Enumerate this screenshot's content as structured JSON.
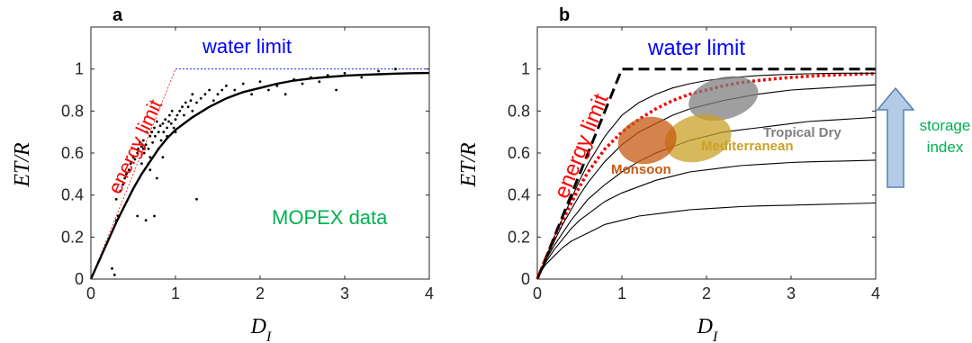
{
  "panel_a": {
    "letter": "a",
    "ylabel_base": "ET/R",
    "xlabel_base": "D",
    "xlabel_sub": "I",
    "annotations": {
      "water_limit": "water limit",
      "energy_limit": "energy limit",
      "dataset": "MOPEX data"
    }
  },
  "panel_b": {
    "letter": "b",
    "ylabel_base": "ET/R",
    "xlabel_base": "D",
    "xlabel_sub": "I",
    "annotations": {
      "water_limit": "water limit",
      "energy_limit": "energy limit",
      "tropical_dry": "Tropical Dry",
      "mediterranean": "Mediterranean",
      "monsoon": "Monsoon",
      "storage_index_line1": "storage",
      "storage_index_line2": "index"
    }
  },
  "colors": {
    "water_limit": "#0000ff",
    "energy_limit": "#ff0000",
    "dataset_text": "#00b050",
    "storage_text": "#00b050",
    "red_dotted": "#ee0000",
    "tropical_dry": "#7f7f7f",
    "mediterranean": "#c9a227",
    "monsoon": "#c55a11",
    "arrow_fill": "#b4cbe6",
    "arrow_stroke": "#5b7fb3"
  },
  "chart_data": [
    {
      "type": "scatter",
      "panel": "a",
      "xlabel": "D_I",
      "ylabel": "ET/R",
      "xlim": [
        0,
        4
      ],
      "ylim": [
        0,
        1.2
      ],
      "xticks": [
        "0",
        "1",
        "2",
        "3",
        "4"
      ],
      "yticks": [
        "0",
        "0.2",
        "0.4",
        "0.6",
        "0.8",
        "1"
      ],
      "grid": false,
      "series": [
        {
          "style": "dashed",
          "color": "#ff0000",
          "x": [
            0,
            1
          ],
          "y": [
            0,
            1
          ]
        },
        {
          "style": "dashed",
          "color": "#0000ff",
          "x": [
            1,
            4
          ],
          "y": [
            1,
            1
          ]
        },
        {
          "style": "line",
          "color": "#000000",
          "x": [
            0,
            0.1,
            0.2,
            0.3,
            0.4,
            0.5,
            0.6,
            0.7,
            0.8,
            0.9,
            1.0,
            1.2,
            1.4,
            1.6,
            1.8,
            2.0,
            2.2,
            2.4,
            2.6,
            2.8,
            3.0,
            3.2,
            3.4,
            3.6,
            3.8,
            4.0
          ],
          "y": [
            0,
            0.09,
            0.18,
            0.27,
            0.35,
            0.43,
            0.5,
            0.56,
            0.62,
            0.67,
            0.71,
            0.77,
            0.82,
            0.86,
            0.89,
            0.91,
            0.93,
            0.945,
            0.955,
            0.962,
            0.968,
            0.972,
            0.975,
            0.978,
            0.98,
            0.981
          ]
        },
        {
          "style": "points",
          "color": "#000000",
          "x": [
            0.25,
            0.28,
            0.3,
            0.32,
            0.35,
            0.38,
            0.4,
            0.42,
            0.45,
            0.47,
            0.5,
            0.52,
            0.55,
            0.56,
            0.58,
            0.6,
            0.6,
            0.62,
            0.63,
            0.65,
            0.66,
            0.68,
            0.7,
            0.7,
            0.72,
            0.73,
            0.75,
            0.76,
            0.78,
            0.8,
            0.8,
            0.82,
            0.83,
            0.85,
            0.86,
            0.88,
            0.9,
            0.9,
            0.92,
            0.93,
            0.95,
            0.96,
            0.98,
            1.0,
            1.0,
            1.02,
            1.05,
            1.08,
            1.1,
            1.12,
            1.15,
            1.18,
            1.2,
            1.2,
            1.25,
            1.3,
            1.35,
            1.4,
            1.45,
            1.5,
            1.55,
            1.6,
            1.7,
            1.8,
            1.9,
            2.0,
            2.1,
            2.2,
            2.3,
            2.4,
            2.5,
            2.6,
            2.7,
            2.8,
            2.9,
            3.0,
            3.2,
            3.4,
            3.6,
            0.28,
            0.3,
            0.55,
            0.65,
            0.78,
            0.7,
            0.85,
            1.25,
            0.75,
            0.62,
            0.68
          ],
          "y": [
            0.05,
            0.02,
            0.28,
            0.3,
            0.42,
            0.45,
            0.48,
            0.5,
            0.52,
            0.55,
            0.58,
            0.57,
            0.6,
            0.62,
            0.65,
            0.63,
            0.55,
            0.66,
            0.6,
            0.64,
            0.7,
            0.62,
            0.68,
            0.58,
            0.7,
            0.65,
            0.72,
            0.68,
            0.75,
            0.7,
            0.62,
            0.73,
            0.66,
            0.74,
            0.7,
            0.76,
            0.72,
            0.68,
            0.75,
            0.78,
            0.74,
            0.8,
            0.72,
            0.76,
            0.7,
            0.78,
            0.8,
            0.82,
            0.78,
            0.84,
            0.82,
            0.85,
            0.8,
            0.88,
            0.84,
            0.86,
            0.88,
            0.9,
            0.85,
            0.88,
            0.9,
            0.92,
            0.9,
            0.93,
            0.88,
            0.94,
            0.9,
            0.92,
            0.88,
            0.95,
            0.93,
            0.96,
            0.94,
            0.97,
            0.9,
            0.98,
            0.96,
            0.99,
            1.0,
            0.45,
            0.38,
            0.3,
            0.28,
            0.48,
            0.52,
            0.58,
            0.38,
            0.3,
            0.62,
            0.55
          ]
        }
      ]
    },
    {
      "type": "line",
      "panel": "b",
      "xlabel": "D_I",
      "ylabel": "ET/R",
      "xlim": [
        0,
        4
      ],
      "ylim": [
        0,
        1.2
      ],
      "xticks": [
        "0",
        "1",
        "2",
        "3",
        "4"
      ],
      "yticks": [
        "0",
        "0.2",
        "0.4",
        "0.6",
        "0.8",
        "1"
      ],
      "grid": false,
      "x": [
        0,
        0.05,
        0.1,
        0.2,
        0.3,
        0.4,
        0.5,
        0.6,
        0.8,
        1.0,
        1.2,
        1.4,
        1.6,
        1.8,
        2.0,
        2.2,
        2.4,
        2.6,
        2.8,
        3.0,
        3.2,
        3.4,
        3.6,
        3.8,
        4.0
      ],
      "series": [
        {
          "style": "dashed-thick",
          "color": "#000000",
          "x": [
            0,
            1,
            4
          ],
          "y": [
            0,
            1,
            1
          ]
        },
        {
          "style": "dotted",
          "color": "#ee0000",
          "y": [
            0,
            0.05,
            0.1,
            0.19,
            0.28,
            0.36,
            0.44,
            0.51,
            0.62,
            0.7,
            0.76,
            0.81,
            0.85,
            0.88,
            0.9,
            0.92,
            0.935,
            0.945,
            0.953,
            0.96,
            0.965,
            0.97,
            0.973,
            0.976,
            0.978
          ]
        },
        {
          "style": "line",
          "color": "#000000",
          "y": [
            0,
            0.05,
            0.1,
            0.2,
            0.29,
            0.38,
            0.47,
            0.55,
            0.68,
            0.78,
            0.84,
            0.88,
            0.91,
            0.93,
            0.945,
            0.955,
            0.962,
            0.968,
            0.972,
            0.975,
            0.977,
            0.979,
            0.98,
            0.98,
            0.98
          ]
        },
        {
          "style": "line",
          "color": "#000000",
          "y": [
            0,
            0.05,
            0.095,
            0.18,
            0.26,
            0.33,
            0.4,
            0.46,
            0.56,
            0.64,
            0.7,
            0.74,
            0.78,
            0.81,
            0.83,
            0.85,
            0.865,
            0.88,
            0.89,
            0.9,
            0.905,
            0.91,
            0.915,
            0.92,
            0.925
          ]
        },
        {
          "style": "line",
          "color": "#000000",
          "y": [
            0,
            0.05,
            0.09,
            0.16,
            0.22,
            0.28,
            0.33,
            0.38,
            0.45,
            0.51,
            0.56,
            0.6,
            0.63,
            0.66,
            0.68,
            0.7,
            0.71,
            0.72,
            0.73,
            0.74,
            0.75,
            0.755,
            0.76,
            0.765,
            0.77
          ]
        },
        {
          "style": "line",
          "color": "#000000",
          "y": [
            0,
            0.045,
            0.08,
            0.14,
            0.19,
            0.24,
            0.28,
            0.31,
            0.37,
            0.41,
            0.44,
            0.47,
            0.49,
            0.51,
            0.52,
            0.53,
            0.54,
            0.545,
            0.55,
            0.555,
            0.558,
            0.56,
            0.562,
            0.564,
            0.566
          ]
        },
        {
          "style": "line",
          "color": "#000000",
          "y": [
            0,
            0.04,
            0.07,
            0.11,
            0.15,
            0.18,
            0.2,
            0.22,
            0.26,
            0.28,
            0.3,
            0.31,
            0.32,
            0.33,
            0.335,
            0.34,
            0.345,
            0.348,
            0.35,
            0.352,
            0.354,
            0.356,
            0.358,
            0.36,
            0.362
          ]
        }
      ],
      "regions": [
        {
          "name": "Tropical Dry",
          "cx": 2.2,
          "cy": 0.86,
          "rx": 0.42,
          "ry": 0.1,
          "color": "#7f7f7f"
        },
        {
          "name": "Mediterranean",
          "cx": 1.9,
          "cy": 0.67,
          "rx": 0.4,
          "ry": 0.11,
          "color": "#c9a227"
        },
        {
          "name": "Monsoon",
          "cx": 1.3,
          "cy": 0.66,
          "rx": 0.35,
          "ry": 0.11,
          "color": "#c55a11"
        }
      ]
    }
  ]
}
